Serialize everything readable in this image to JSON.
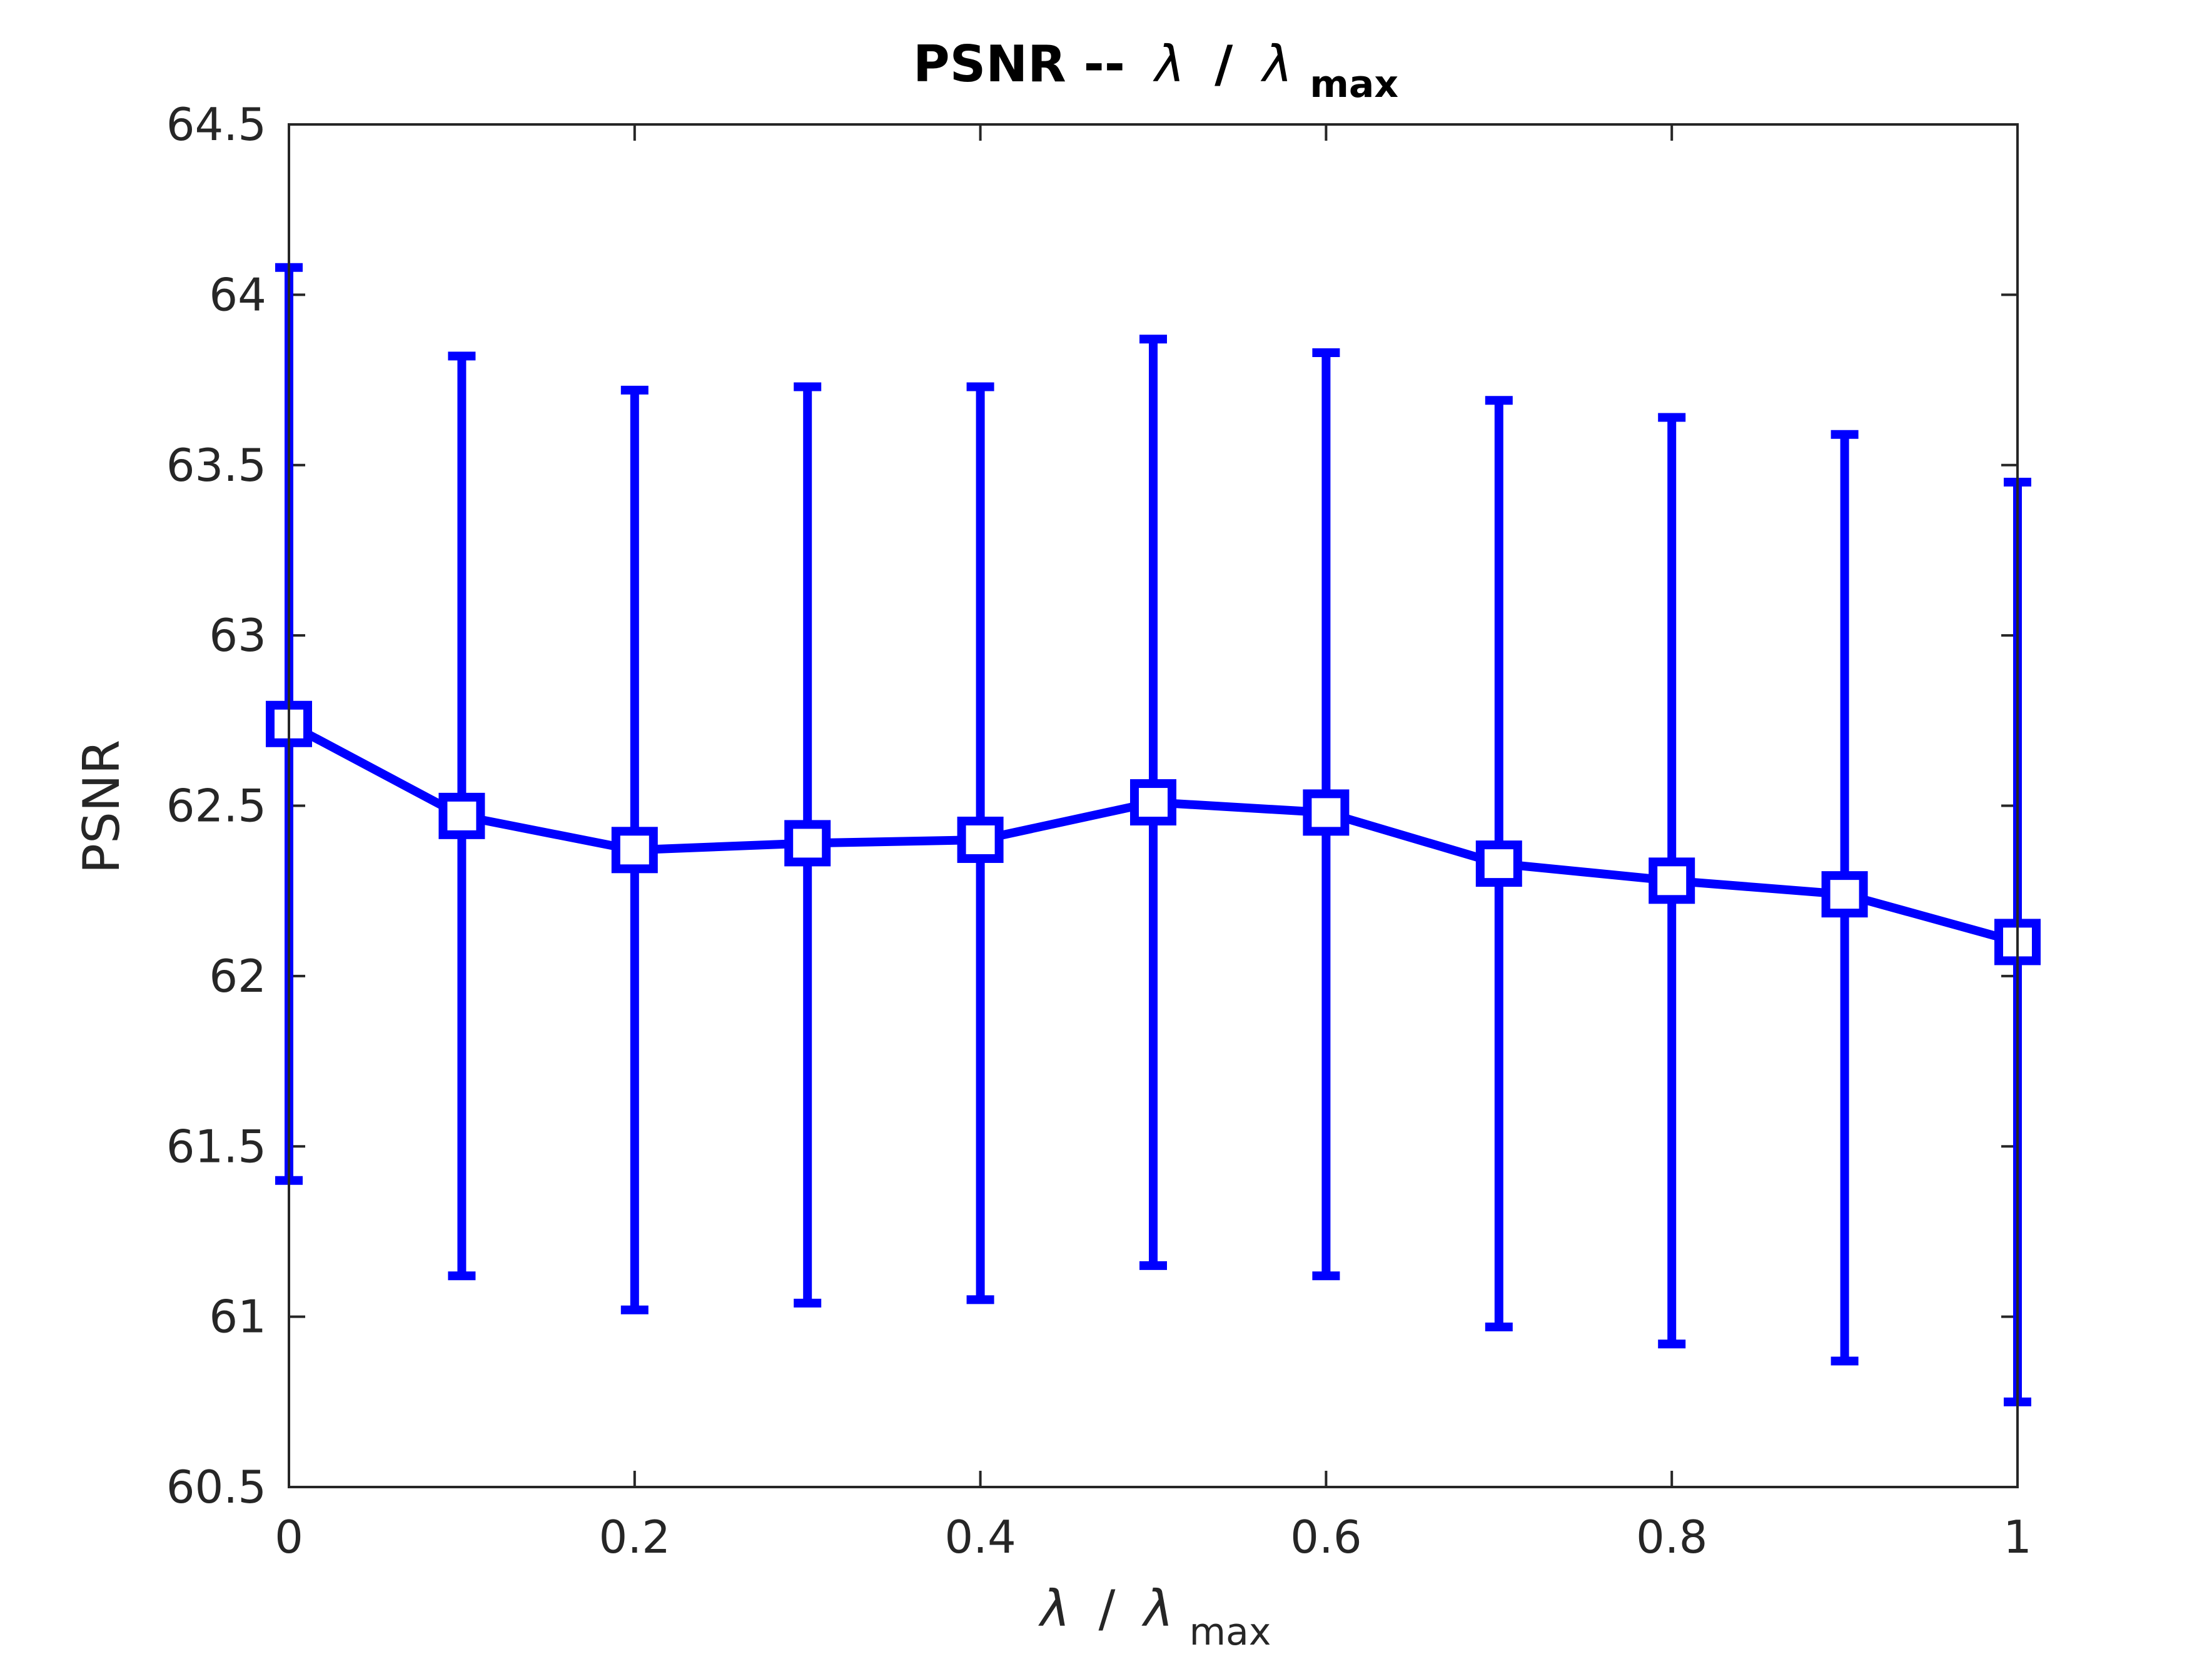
{
  "chart_data": {
    "type": "line",
    "title": {
      "main": "PSNR --",
      "symbol": "λ",
      "slash": "/",
      "symbol2": "λ",
      "subscript": "max"
    },
    "xlabel": {
      "symbol": "λ",
      "slash": "/",
      "symbol2": "λ",
      "subscript": "max"
    },
    "ylabel": "PSNR",
    "xlim": [
      0,
      1
    ],
    "ylim": [
      60.5,
      64.5
    ],
    "xticks": [
      0,
      0.2,
      0.4,
      0.6,
      0.8,
      1
    ],
    "xtick_labels": [
      "0",
      "0.2",
      "0.4",
      "0.6",
      "0.8",
      "1"
    ],
    "yticks": [
      60.5,
      61,
      61.5,
      62,
      62.5,
      63,
      63.5,
      64,
      64.5
    ],
    "ytick_labels": [
      "60.5",
      "61",
      "61.5",
      "62",
      "62.5",
      "63",
      "63.5",
      "64",
      "64.5"
    ],
    "grid": false,
    "series": [
      {
        "color": "#0000ff",
        "marker": "square",
        "x": [
          0,
          0.1,
          0.2,
          0.3,
          0.4,
          0.5,
          0.6,
          0.7,
          0.8,
          0.9,
          1.0
        ],
        "y": [
          62.74,
          62.47,
          62.37,
          62.39,
          62.4,
          62.51,
          62.48,
          62.33,
          62.28,
          62.24,
          62.1
        ],
        "err_low": [
          61.4,
          61.12,
          61.02,
          61.04,
          61.05,
          61.15,
          61.12,
          60.97,
          60.92,
          60.87,
          60.75
        ],
        "err_high": [
          64.08,
          63.82,
          63.72,
          63.73,
          63.73,
          63.87,
          63.83,
          63.69,
          63.64,
          63.59,
          63.45
        ]
      }
    ]
  }
}
